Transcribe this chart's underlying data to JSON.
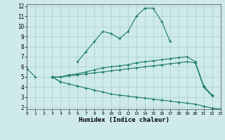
{
  "xlabel": "Humidex (Indice chaleur)",
  "bg_color": "#ceeaea",
  "grid_color": "#aacece",
  "line_color": "#1a7a6a",
  "x": [
    0,
    1,
    2,
    3,
    4,
    5,
    6,
    7,
    8,
    9,
    10,
    11,
    12,
    13,
    14,
    15,
    16,
    17,
    18,
    19,
    20,
    21,
    22,
    23
  ],
  "line1": [
    5.8,
    5.0,
    null,
    5.0,
    4.5,
    null,
    6.5,
    7.5,
    8.5,
    9.5,
    9.3,
    8.8,
    9.5,
    11.0,
    11.8,
    11.8,
    10.5,
    8.5,
    null,
    null,
    null,
    null,
    null,
    null
  ],
  "line2": [
    5.8,
    null,
    null,
    5.0,
    5.0,
    5.2,
    5.3,
    5.5,
    5.7,
    5.9,
    6.0,
    6.1,
    6.2,
    6.4,
    6.5,
    6.6,
    6.7,
    6.8,
    6.9,
    7.0,
    6.5,
    4.1,
    3.2,
    null
  ],
  "line3": [
    5.8,
    null,
    null,
    5.0,
    5.0,
    5.1,
    5.2,
    5.3,
    5.4,
    5.5,
    5.6,
    5.7,
    5.8,
    5.9,
    6.0,
    6.1,
    6.2,
    6.3,
    6.4,
    6.5,
    6.4,
    4.0,
    3.1,
    null
  ],
  "line4": [
    5.8,
    null,
    null,
    5.0,
    4.5,
    4.3,
    4.1,
    3.9,
    3.7,
    3.5,
    3.3,
    3.2,
    3.1,
    3.0,
    2.9,
    2.8,
    2.7,
    2.6,
    2.5,
    2.4,
    2.3,
    2.1,
    1.9,
    1.8
  ],
  "xlim": [
    0,
    23
  ],
  "ylim": [
    1.8,
    12.2
  ],
  "yticks": [
    2,
    3,
    4,
    5,
    6,
    7,
    8,
    9,
    10,
    11,
    12
  ],
  "xticks": [
    0,
    1,
    2,
    3,
    4,
    5,
    6,
    7,
    8,
    9,
    10,
    11,
    12,
    13,
    14,
    15,
    16,
    17,
    18,
    19,
    20,
    21,
    22,
    23
  ]
}
